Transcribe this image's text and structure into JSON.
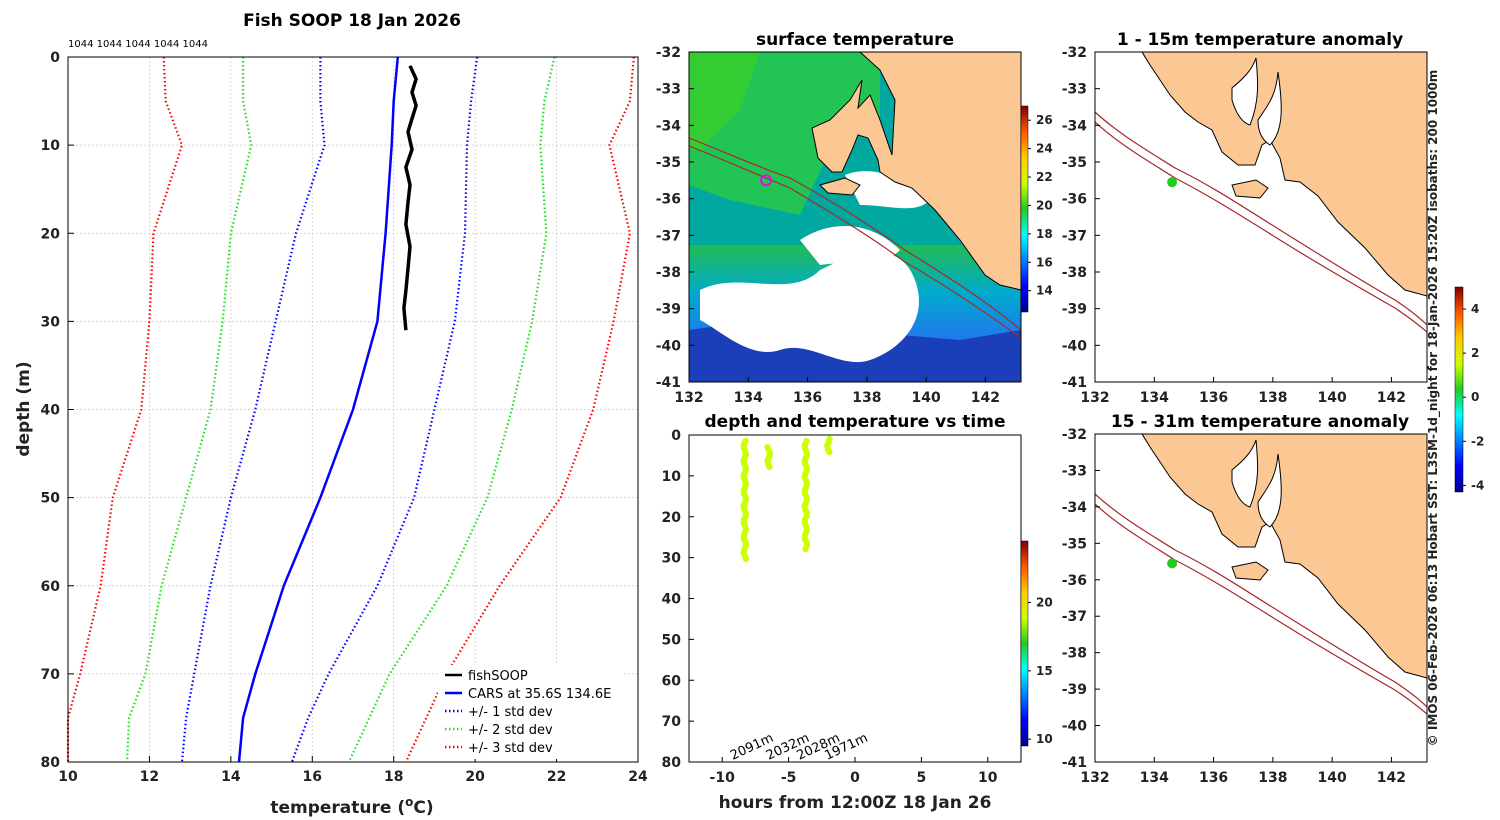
{
  "colors": {
    "fishsoop": "#000000",
    "cars": "#0000ff",
    "std1": "#0000ff",
    "std2": "#22dd22",
    "std3": "#ff0000",
    "land": "#fbc793",
    "isobath": "#a52a2a",
    "marker_green": "#22cc22",
    "marker_magenta": "#dd11dd",
    "scatter": "#ccff00"
  },
  "chart_data": [
    {
      "id": "profile",
      "type": "line",
      "title": "Fish SOOP 18 Jan 2026",
      "xlabel": "temperature (°C)",
      "xlabel_main": "temperature (",
      "xlabel_sup": "o",
      "xlabel_end": "C)",
      "ylabel": "depth (m)",
      "xlim": [
        10,
        24
      ],
      "ylim": [
        0,
        80
      ],
      "y_inverted": true,
      "xticks": [
        10,
        12,
        14,
        16,
        18,
        20,
        22,
        24
      ],
      "yticks": [
        0,
        10,
        20,
        30,
        40,
        50,
        60,
        70,
        80
      ],
      "grid": true,
      "legend_position": "bottom-right",
      "top_annotation": "1044 1044 1044 1044 1044",
      "depths": [
        0,
        5,
        10,
        20,
        30,
        40,
        50,
        60,
        70,
        75,
        80
      ],
      "series": [
        {
          "name": "CARS at 35.6S 134.6E",
          "style": "solid",
          "color_key": "cars",
          "values": [
            18.1,
            18.0,
            17.95,
            17.8,
            17.6,
            17.0,
            16.2,
            15.3,
            14.6,
            14.3,
            14.2
          ]
        },
        {
          "name": "+/- 1 std dev",
          "style": "dotted",
          "color_key": "std1",
          "values": [
            16.2,
            16.2,
            16.3,
            15.6,
            15.1,
            14.6,
            14.0,
            13.5,
            13.1,
            12.9,
            12.8
          ]
        },
        {
          "name": "+/- 1 std dev upper",
          "style": "dotted",
          "color_key": "std1",
          "legend": false,
          "values": [
            20.05,
            19.9,
            19.8,
            19.75,
            19.5,
            19.0,
            18.5,
            17.6,
            16.4,
            15.9,
            15.5
          ]
        },
        {
          "name": "+/- 2 std dev",
          "style": "dotted",
          "color_key": "std2",
          "values": [
            14.3,
            14.3,
            14.5,
            14.0,
            13.8,
            13.5,
            12.9,
            12.3,
            11.9,
            11.5,
            11.45
          ]
        },
        {
          "name": "+/- 2 std dev upper",
          "style": "dotted",
          "color_key": "std2",
          "legend": false,
          "values": [
            21.95,
            21.7,
            21.6,
            21.75,
            21.4,
            20.9,
            20.3,
            19.3,
            17.9,
            17.4,
            16.9
          ]
        },
        {
          "name": "+/- 3 std dev",
          "style": "dotted",
          "color_key": "std3",
          "values": [
            12.35,
            12.4,
            12.8,
            12.1,
            12.0,
            11.8,
            11.1,
            10.8,
            10.3,
            10.0,
            10.0
          ]
        },
        {
          "name": "+/- 3 std dev upper",
          "style": "dotted",
          "color_key": "std3",
          "legend": false,
          "values": [
            23.9,
            23.8,
            23.3,
            23.8,
            23.4,
            22.9,
            22.1,
            20.6,
            19.3,
            18.8,
            18.3
          ]
        }
      ],
      "fishsoop": {
        "name": "fishSOOP",
        "points": [
          [
            18.4,
            1.0
          ],
          [
            18.55,
            2.5
          ],
          [
            18.45,
            4.0
          ],
          [
            18.55,
            5.5
          ],
          [
            18.45,
            7.0
          ],
          [
            18.35,
            8.5
          ],
          [
            18.45,
            10.5
          ],
          [
            18.3,
            12.5
          ],
          [
            18.4,
            14.5
          ],
          [
            18.35,
            16.5
          ],
          [
            18.3,
            19.0
          ],
          [
            18.4,
            21.5
          ],
          [
            18.35,
            24.0
          ],
          [
            18.3,
            26.5
          ],
          [
            18.25,
            28.5
          ],
          [
            18.3,
            31.0
          ]
        ]
      },
      "legend": [
        {
          "label": "fishSOOP",
          "color_key": "fishsoop",
          "style": "solid"
        },
        {
          "label": "CARS at 35.6S 134.6E",
          "color_key": "cars",
          "style": "solid"
        },
        {
          "label": "+/- 1 std dev",
          "color_key": "std1",
          "style": "dotted"
        },
        {
          "label": "+/- 2 std dev",
          "color_key": "std2",
          "style": "dotted"
        },
        {
          "label": "+/- 3 std dev",
          "color_key": "std3",
          "style": "dotted"
        }
      ]
    },
    {
      "id": "sst_map",
      "type": "heatmap",
      "title": "surface temperature",
      "xlim": [
        132,
        143.2
      ],
      "ylim": [
        -41,
        -32
      ],
      "xticks": [
        132,
        134,
        136,
        138,
        140,
        142
      ],
      "yticks": [
        -32,
        -33,
        -34,
        -35,
        -36,
        -37,
        -38,
        -39,
        -40,
        -41
      ],
      "colorbar": {
        "min": 12.5,
        "max": 27,
        "ticks": [
          14,
          16,
          18,
          20,
          22,
          24,
          26
        ]
      },
      "marker": {
        "lon": 134.6,
        "lat": -35.5
      }
    },
    {
      "id": "depth_time",
      "type": "scatter",
      "title": "depth and temperature vs time",
      "xlabel": "hours from 12:00Z 18 Jan 26",
      "xlim": [
        -12.5,
        12.5
      ],
      "ylim": [
        0,
        80
      ],
      "y_inverted": true,
      "xticks": [
        -10,
        -5,
        0,
        5,
        10
      ],
      "yticks": [
        0,
        10,
        20,
        30,
        40,
        50,
        60,
        70,
        80
      ],
      "colorbar": {
        "min": 9.5,
        "max": 24.5,
        "ticks": [
          10,
          15,
          20
        ]
      },
      "casts": [
        {
          "hour": -8.3,
          "dmin": 1.5,
          "dmax": 30.5,
          "temp": 18.3
        },
        {
          "hour": -6.5,
          "dmin": 3.0,
          "dmax": 8.0,
          "temp": 18.3
        },
        {
          "hour": -3.7,
          "dmin": 1.5,
          "dmax": 28.5,
          "temp": 18.3
        },
        {
          "hour": -2.0,
          "dmin": 1.0,
          "dmax": 4.5,
          "temp": 18.3
        }
      ],
      "annotations": [
        {
          "text": "2091m",
          "hour": -9.2,
          "depth": 79.5
        },
        {
          "text": "2032m",
          "hour": -6.5,
          "depth": 79.5
        },
        {
          "text": "2028m",
          "hour": -4.2,
          "depth": 79.5
        },
        {
          "text": "1971m",
          "hour": -2.1,
          "depth": 79.5
        }
      ]
    },
    {
      "id": "anom_1_15",
      "type": "heatmap",
      "title": "1 - 15m temperature anomaly",
      "xlim": [
        132,
        143.2
      ],
      "ylim": [
        -41,
        -32
      ],
      "xticks": [
        132,
        134,
        136,
        138,
        140,
        142
      ],
      "yticks": [
        -32,
        -33,
        -34,
        -35,
        -36,
        -37,
        -38,
        -39,
        -40,
        -41
      ],
      "marker": {
        "lon": 134.6,
        "lat": -35.55
      }
    },
    {
      "id": "anom_15_31",
      "type": "heatmap",
      "title": "15 - 31m temperature anomaly",
      "xlim": [
        132,
        143.2
      ],
      "ylim": [
        -41,
        -32
      ],
      "xticks": [
        132,
        134,
        136,
        138,
        140,
        142
      ],
      "yticks": [
        -32,
        -33,
        -34,
        -35,
        -36,
        -37,
        -38,
        -39,
        -40,
        -41
      ],
      "marker": {
        "lon": 134.6,
        "lat": -35.55
      },
      "colorbar": {
        "min": -4.3,
        "max": 5.0,
        "ticks": [
          4,
          2,
          0,
          -2,
          -4
        ]
      }
    }
  ],
  "credit": "© IMOS 06-Feb-2026 06:13 Hobart SST: L3SM-1d_night for 18-Jan-2026 15:20Z isobaths: 200  1000m"
}
